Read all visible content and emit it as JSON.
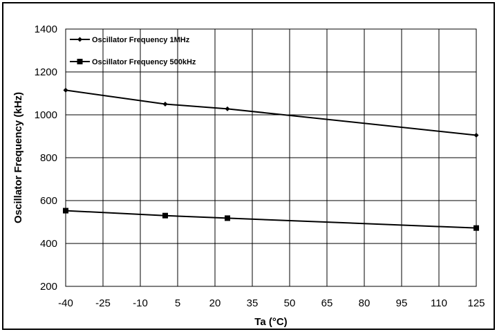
{
  "chart_data": {
    "type": "line",
    "title": "",
    "xlabel": "Ta (°C)",
    "ylabel": "Oscillator Frequency (kHz)",
    "x_ticks": [
      -40,
      -25,
      -10,
      5,
      20,
      35,
      50,
      65,
      80,
      95,
      110,
      125
    ],
    "y_ticks": [
      200,
      400,
      600,
      800,
      1000,
      1200,
      1400
    ],
    "xlim": [
      -40,
      125
    ],
    "ylim": [
      200,
      1400
    ],
    "grid": true,
    "legend_position": "top-left",
    "series": [
      {
        "name": "Oscillator Frequency 1MHz",
        "marker": "diamond",
        "color": "#000000",
        "x": [
          -40,
          0,
          25,
          125
        ],
        "y": [
          1115,
          1050,
          1028,
          905
        ]
      },
      {
        "name": "Oscillator Frequency 500kHz",
        "marker": "square",
        "color": "#000000",
        "x": [
          -40,
          0,
          25,
          125
        ],
        "y": [
          553,
          530,
          518,
          472
        ]
      }
    ]
  }
}
